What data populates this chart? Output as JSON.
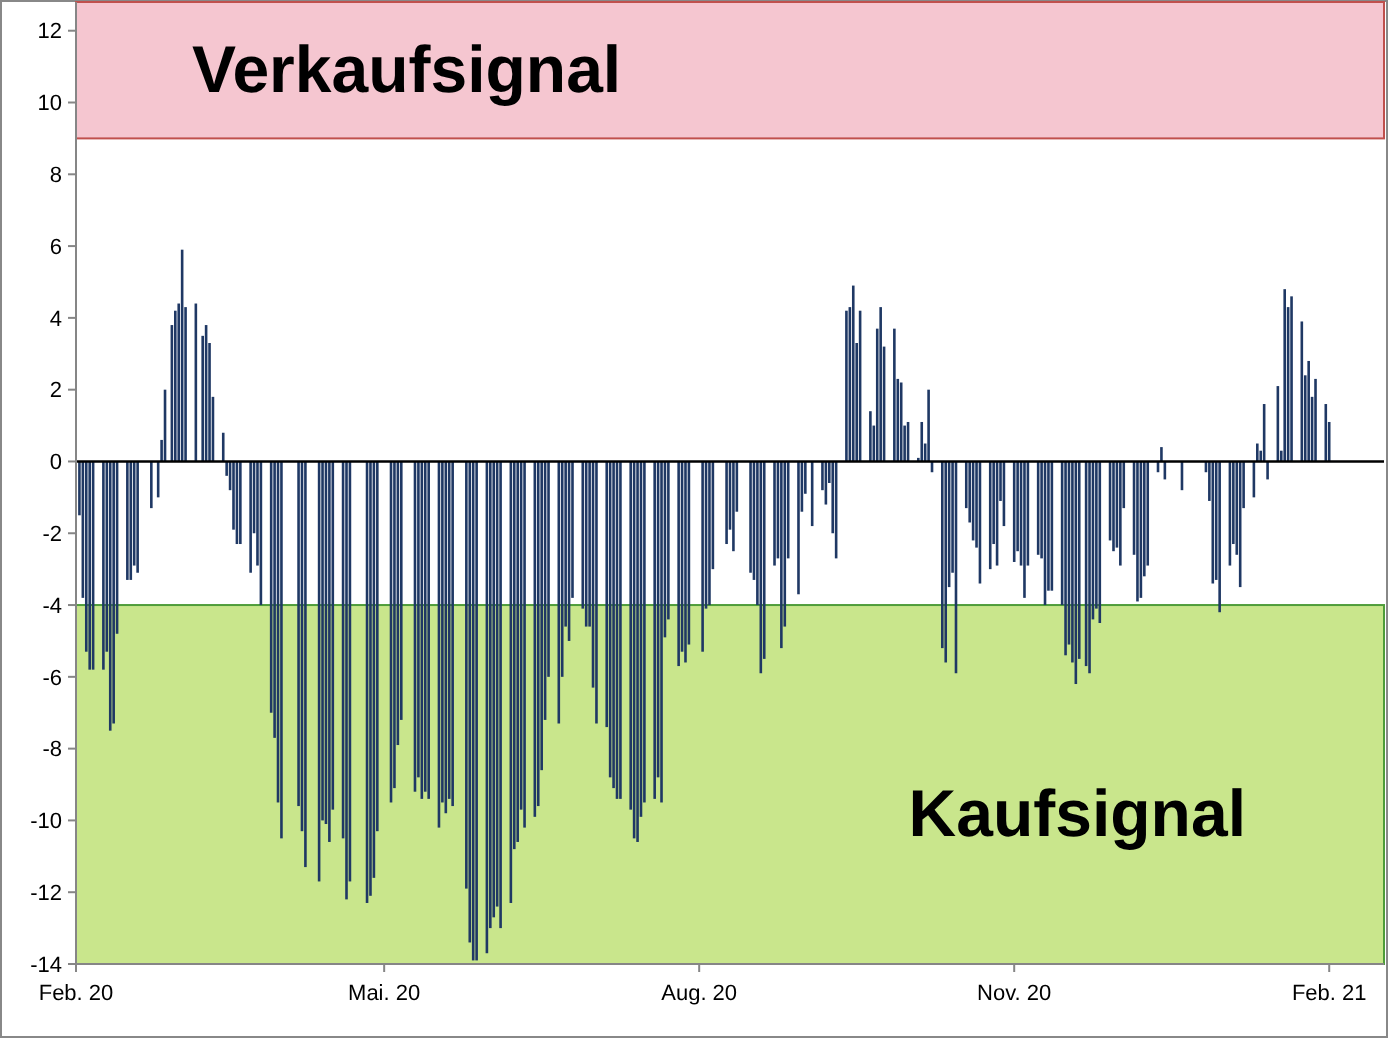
{
  "chart_data": {
    "type": "bar",
    "xlim": [
      "2020-02-01",
      "2021-02-17"
    ],
    "ylim": [
      -14,
      12.8
    ],
    "xticks": [
      {
        "value": "2020-02-01",
        "label": "Feb. 20"
      },
      {
        "value": "2020-05-01",
        "label": "Mai. 20"
      },
      {
        "value": "2020-08-01",
        "label": "Aug. 20"
      },
      {
        "value": "2020-11-01",
        "label": "Nov. 20"
      },
      {
        "value": "2021-02-01",
        "label": "Feb. 21"
      }
    ],
    "yticks": [
      -14,
      -12,
      -10,
      -8,
      -6,
      -4,
      -2,
      0,
      2,
      4,
      6,
      8,
      10,
      12
    ],
    "bands": [
      {
        "axis": "y",
        "from": 9,
        "to": 12.8,
        "label": "Verkaufsignal",
        "color": "#f5c6d0"
      },
      {
        "axis": "y",
        "from": -14,
        "to": -4,
        "label": "Kaufsignal",
        "color": "#c9e68c"
      }
    ],
    "x": [
      "2020-02-02",
      "2020-02-03",
      "2020-02-04",
      "2020-02-05",
      "2020-02-06",
      "2020-02-09",
      "2020-02-10",
      "2020-02-11",
      "2020-02-12",
      "2020-02-13",
      "2020-02-16",
      "2020-02-17",
      "2020-02-18",
      "2020-02-19",
      "2020-02-23",
      "2020-02-25",
      "2020-02-26",
      "2020-02-27",
      "2020-02-29",
      "2020-03-01",
      "2020-03-02",
      "2020-03-03",
      "2020-03-04",
      "2020-03-07",
      "2020-03-09",
      "2020-03-10",
      "2020-03-11",
      "2020-03-12",
      "2020-03-15",
      "2020-03-16",
      "2020-03-17",
      "2020-03-18",
      "2020-03-19",
      "2020-03-20",
      "2020-03-23",
      "2020-03-24",
      "2020-03-25",
      "2020-03-26",
      "2020-03-29",
      "2020-03-30",
      "2020-03-31",
      "2020-04-01",
      "2020-04-06",
      "2020-04-07",
      "2020-04-08",
      "2020-04-12",
      "2020-04-13",
      "2020-04-14",
      "2020-04-15",
      "2020-04-16",
      "2020-04-19",
      "2020-04-20",
      "2020-04-21",
      "2020-04-26",
      "2020-04-27",
      "2020-04-28",
      "2020-04-29",
      "2020-05-03",
      "2020-05-04",
      "2020-05-05",
      "2020-05-06",
      "2020-05-10",
      "2020-05-11",
      "2020-05-12",
      "2020-05-13",
      "2020-05-14",
      "2020-05-17",
      "2020-05-18",
      "2020-05-19",
      "2020-05-20",
      "2020-05-21",
      "2020-05-25",
      "2020-05-26",
      "2020-05-27",
      "2020-05-28",
      "2020-05-31",
      "2020-06-01",
      "2020-06-02",
      "2020-06-03",
      "2020-06-04",
      "2020-06-07",
      "2020-06-08",
      "2020-06-09",
      "2020-06-10",
      "2020-06-11",
      "2020-06-14",
      "2020-06-15",
      "2020-06-16",
      "2020-06-17",
      "2020-06-18",
      "2020-06-21",
      "2020-06-22",
      "2020-06-23",
      "2020-06-24",
      "2020-06-25",
      "2020-06-28",
      "2020-06-29",
      "2020-06-30",
      "2020-07-01",
      "2020-07-02",
      "2020-07-05",
      "2020-07-06",
      "2020-07-07",
      "2020-07-08",
      "2020-07-09",
      "2020-07-12",
      "2020-07-13",
      "2020-07-14",
      "2020-07-15",
      "2020-07-16",
      "2020-07-19",
      "2020-07-20",
      "2020-07-21",
      "2020-07-22",
      "2020-07-23",
      "2020-07-26",
      "2020-07-27",
      "2020-07-28",
      "2020-07-29",
      "2020-08-02",
      "2020-08-03",
      "2020-08-04",
      "2020-08-05",
      "2020-08-09",
      "2020-08-10",
      "2020-08-11",
      "2020-08-12",
      "2020-08-16",
      "2020-08-17",
      "2020-08-18",
      "2020-08-19",
      "2020-08-20",
      "2020-08-23",
      "2020-08-24",
      "2020-08-25",
      "2020-08-26",
      "2020-08-27",
      "2020-08-30",
      "2020-08-31",
      "2020-09-01",
      "2020-09-03",
      "2020-09-06",
      "2020-09-07",
      "2020-09-08",
      "2020-09-09",
      "2020-09-10",
      "2020-09-13",
      "2020-09-14",
      "2020-09-15",
      "2020-09-16",
      "2020-09-17",
      "2020-09-20",
      "2020-09-21",
      "2020-09-22",
      "2020-09-23",
      "2020-09-24",
      "2020-09-27",
      "2020-09-28",
      "2020-09-29",
      "2020-09-30",
      "2020-10-01",
      "2020-10-04",
      "2020-10-05",
      "2020-10-06",
      "2020-10-07",
      "2020-10-08",
      "2020-10-11",
      "2020-10-12",
      "2020-10-13",
      "2020-10-14",
      "2020-10-15",
      "2020-10-18",
      "2020-10-19",
      "2020-10-20",
      "2020-10-21",
      "2020-10-22",
      "2020-10-25",
      "2020-10-26",
      "2020-10-27",
      "2020-10-28",
      "2020-10-29",
      "2020-11-01",
      "2020-11-02",
      "2020-11-03",
      "2020-11-04",
      "2020-11-05",
      "2020-11-08",
      "2020-11-09",
      "2020-11-10",
      "2020-11-11",
      "2020-11-12",
      "2020-11-15",
      "2020-11-16",
      "2020-11-17",
      "2020-11-18",
      "2020-11-19",
      "2020-11-20",
      "2020-11-22",
      "2020-11-23",
      "2020-11-24",
      "2020-11-25",
      "2020-11-26",
      "2020-11-29",
      "2020-11-30",
      "2020-12-01",
      "2020-12-02",
      "2020-12-03",
      "2020-12-06",
      "2020-12-07",
      "2020-12-08",
      "2020-12-09",
      "2020-12-10",
      "2020-12-13",
      "2020-12-14",
      "2020-12-15",
      "2020-12-20",
      "2020-12-27",
      "2020-12-28",
      "2020-12-29",
      "2020-12-30",
      "2020-12-31",
      "2021-01-03",
      "2021-01-04",
      "2021-01-05",
      "2021-01-06",
      "2021-01-07",
      "2021-01-10",
      "2021-01-11",
      "2021-01-12",
      "2021-01-13",
      "2021-01-14",
      "2021-01-17",
      "2021-01-18",
      "2021-01-19",
      "2021-01-20",
      "2021-01-21",
      "2021-01-24",
      "2021-01-25",
      "2021-01-26",
      "2021-01-27",
      "2021-01-28",
      "2021-01-31",
      "2021-02-01"
    ],
    "series": [
      {
        "color": "#1f3864",
        "values": [
          -1.5,
          -3.8,
          -5.3,
          -5.8,
          -5.8,
          -5.8,
          -5.3,
          -7.5,
          -7.3,
          -4.8,
          -3.3,
          -3.3,
          -2.9,
          -3.1,
          -1.3,
          -1.0,
          0.6,
          2.0,
          3.8,
          4.2,
          4.4,
          5.9,
          4.3,
          4.4,
          3.5,
          3.8,
          3.3,
          1.8,
          0.8,
          -0.4,
          -0.8,
          -1.9,
          -2.3,
          -2.3,
          -3.1,
          -2.0,
          -2.9,
          -4.0,
          -7.0,
          -7.7,
          -9.5,
          -10.5,
          -9.6,
          -10.3,
          -11.3,
          -11.7,
          -10.0,
          -10.1,
          -10.6,
          -9.7,
          -10.5,
          -12.2,
          -11.7,
          -12.3,
          -12.1,
          -11.6,
          -10.3,
          -9.5,
          -9.1,
          -7.9,
          -7.2,
          -9.2,
          -8.8,
          -9.4,
          -9.2,
          -9.4,
          -10.2,
          -9.5,
          -9.8,
          -9.4,
          -9.6,
          -11.9,
          -13.4,
          -13.9,
          -13.9,
          -13.7,
          -13.0,
          -12.7,
          -12.4,
          -13.0,
          -12.3,
          -10.8,
          -10.6,
          -9.7,
          -10.2,
          -9.9,
          -9.6,
          -8.6,
          -7.2,
          -6.0,
          -7.3,
          -6.0,
          -4.6,
          -5.0,
          -3.8,
          -4.1,
          -4.6,
          -4.6,
          -6.3,
          -7.3,
          -7.4,
          -8.8,
          -9.1,
          -9.4,
          -9.4,
          -9.7,
          -10.5,
          -10.6,
          -9.9,
          -9.5,
          -9.4,
          -8.8,
          -9.5,
          -4.9,
          -4.4,
          -5.7,
          -5.3,
          -5.6,
          -5.1,
          -5.3,
          -4.1,
          -4.0,
          -3.0,
          -2.3,
          -1.9,
          -2.5,
          -1.4,
          -3.1,
          -3.3,
          -4.0,
          -5.9,
          -5.5,
          -2.9,
          -2.7,
          -5.2,
          -4.6,
          -2.7,
          -3.7,
          -1.4,
          -0.9,
          -1.8,
          -0.8,
          -1.2,
          -0.6,
          -2.0,
          -2.7,
          4.2,
          4.3,
          4.9,
          3.3,
          4.2,
          1.4,
          1.0,
          3.7,
          4.3,
          3.2,
          3.7,
          2.3,
          2.2,
          1.0,
          1.1,
          0.1,
          1.1,
          0.5,
          2.0,
          -0.3,
          -5.2,
          -5.6,
          -3.5,
          -3.1,
          -5.9,
          -1.3,
          -1.7,
          -2.2,
          -2.4,
          -3.4,
          -3.0,
          -2.3,
          -2.9,
          -1.1,
          -1.8,
          -2.8,
          -2.5,
          -2.9,
          -3.8,
          -2.9,
          -2.6,
          -2.7,
          -4.0,
          -3.6,
          -3.6,
          -4.0,
          -5.4,
          -5.1,
          -5.6,
          -6.2,
          -5.5,
          -5.7,
          -5.9,
          -4.4,
          -4.1,
          -4.5,
          -2.2,
          -2.5,
          -2.4,
          -2.9,
          -1.3,
          -2.6,
          -3.9,
          -3.8,
          -3.2,
          -2.9,
          -0.3,
          0.4,
          -0.5,
          -0.8,
          -0.3,
          -1.1,
          -3.4,
          -3.3,
          -4.2,
          -2.9,
          -2.3,
          -2.6,
          -3.5,
          -1.3,
          -1.0,
          0.5,
          0.3,
          1.6,
          -0.5,
          2.1,
          0.3,
          4.8,
          4.3,
          4.6,
          3.9,
          2.4,
          2.8,
          1.8,
          2.3,
          1.6,
          1.1
        ]
      }
    ]
  }
}
